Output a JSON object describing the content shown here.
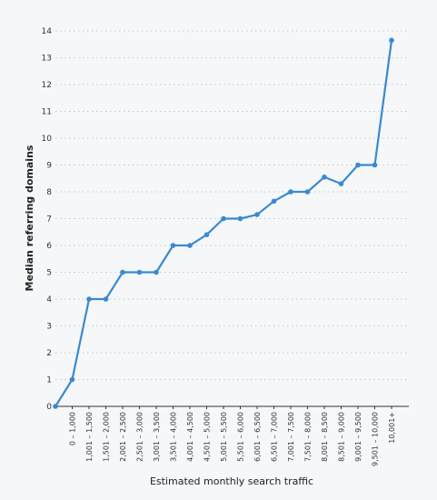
{
  "chart_data": {
    "type": "line",
    "title": "",
    "xlabel": "Estimated monthly search traffic",
    "ylabel": "Median referring domains",
    "ylim": [
      0,
      14
    ],
    "yticks": [
      0,
      1,
      2,
      3,
      4,
      5,
      6,
      7,
      8,
      9,
      10,
      11,
      12,
      13,
      14
    ],
    "grid": true,
    "x": [
      "0",
      "0 – 1,000",
      "1,001 – 1,500",
      "1,501 – 2,000",
      "2,001 – 2,500",
      "2,501 – 3,000",
      "3,001 – 3,500",
      "3,501 – 4,000",
      "4,001 – 4,500",
      "4,501 – 5,000",
      "5,001 – 5,500",
      "5,501 – 6,000",
      "6,001 – 6,500",
      "6,501 – 7,000",
      "7,001 – 7,500",
      "7,501 – 8,000",
      "8,001 – 8,500",
      "8,501 – 9,000",
      "9,001 – 9,500",
      "9,501 – 10,000",
      "10,001+"
    ],
    "x_tick_labels": [
      "0 – 1,000",
      "1,001 – 1,500",
      "1,501 – 2,000",
      "2,001 – 2,500",
      "2,501 – 3,000",
      "3,001 – 3,500",
      "3,501 – 4,000",
      "4,001 – 4,500",
      "4,501 – 5,000",
      "5,001 – 5,500",
      "5,501 – 6,000",
      "6,001 – 6,500",
      "6,501 – 7,000",
      "7,001 – 7,500",
      "7,501 – 8,000",
      "8,001 – 8,500",
      "8,501 – 9,000",
      "9,001 – 9,500",
      "9,501 – 10,000",
      "10,001+"
    ],
    "series": [
      {
        "values": [
          0,
          1,
          4,
          4,
          5,
          5,
          5,
          6,
          6,
          6.4,
          7,
          7,
          7.15,
          7.65,
          8,
          8,
          8.55,
          8.3,
          9,
          9,
          13.65
        ],
        "color": "#3a8ad1"
      }
    ]
  }
}
